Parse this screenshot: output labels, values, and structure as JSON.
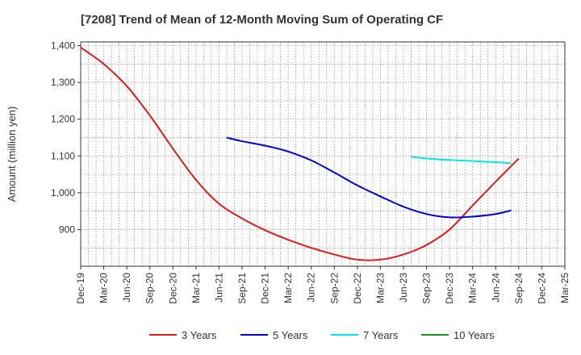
{
  "chart_data": {
    "type": "line",
    "title": "[7208]  Trend of Mean of 12-Month Moving Sum of Operating CF",
    "xlabel": "",
    "ylabel": "Amount (million yen)",
    "ylim": [
      800,
      1410
    ],
    "yticks": [
      900,
      1000,
      1100,
      1200,
      1300,
      1400
    ],
    "ytick_labels": [
      "900",
      "1,000",
      "1,100",
      "1,200",
      "1,300",
      "1,400"
    ],
    "x_tick_labels": [
      "Dec-19",
      "Mar-20",
      "Jun-20",
      "Sep-20",
      "Dec-20",
      "Mar-21",
      "Jun-21",
      "Sep-21",
      "Dec-21",
      "Mar-22",
      "Jun-22",
      "Sep-22",
      "Dec-22",
      "Mar-23",
      "Jun-23",
      "Sep-23",
      "Dec-23",
      "Mar-24",
      "Jun-24",
      "Sep-24",
      "Dec-24",
      "Mar-25"
    ],
    "x_range_quarters": [
      0,
      21
    ],
    "grid": true,
    "legend_position": "bottom",
    "series": [
      {
        "name": "3 Years",
        "color": "#e31a1c",
        "points": [
          [
            0,
            1395
          ],
          [
            1,
            1350
          ],
          [
            2,
            1290
          ],
          [
            3,
            1210
          ],
          [
            4,
            1120
          ],
          [
            5,
            1035
          ],
          [
            6,
            970
          ],
          [
            7,
            930
          ],
          [
            8,
            898
          ],
          [
            9,
            872
          ],
          [
            10,
            850
          ],
          [
            11,
            832
          ],
          [
            12,
            818
          ],
          [
            13,
            818
          ],
          [
            14,
            832
          ],
          [
            15,
            858
          ],
          [
            16,
            900
          ],
          [
            17,
            965
          ],
          [
            18,
            1030
          ],
          [
            19,
            1093
          ]
        ]
      },
      {
        "name": "5 Years",
        "color": "#0000cc",
        "points": [
          [
            6.33,
            1150
          ],
          [
            7,
            1140
          ],
          [
            8,
            1128
          ],
          [
            9,
            1112
          ],
          [
            10,
            1088
          ],
          [
            11,
            1055
          ],
          [
            12,
            1020
          ],
          [
            13,
            990
          ],
          [
            14,
            962
          ],
          [
            15,
            942
          ],
          [
            16,
            933
          ],
          [
            17,
            935
          ],
          [
            18,
            942
          ],
          [
            18.67,
            952
          ]
        ]
      },
      {
        "name": "7 Years",
        "color": "#00e5ee",
        "points": [
          [
            14.33,
            1098
          ],
          [
            15,
            1093
          ],
          [
            16,
            1089
          ],
          [
            17,
            1086
          ],
          [
            18,
            1083
          ],
          [
            18.67,
            1080
          ]
        ]
      },
      {
        "name": "10 Years",
        "color": "#228b22",
        "points": []
      }
    ]
  }
}
